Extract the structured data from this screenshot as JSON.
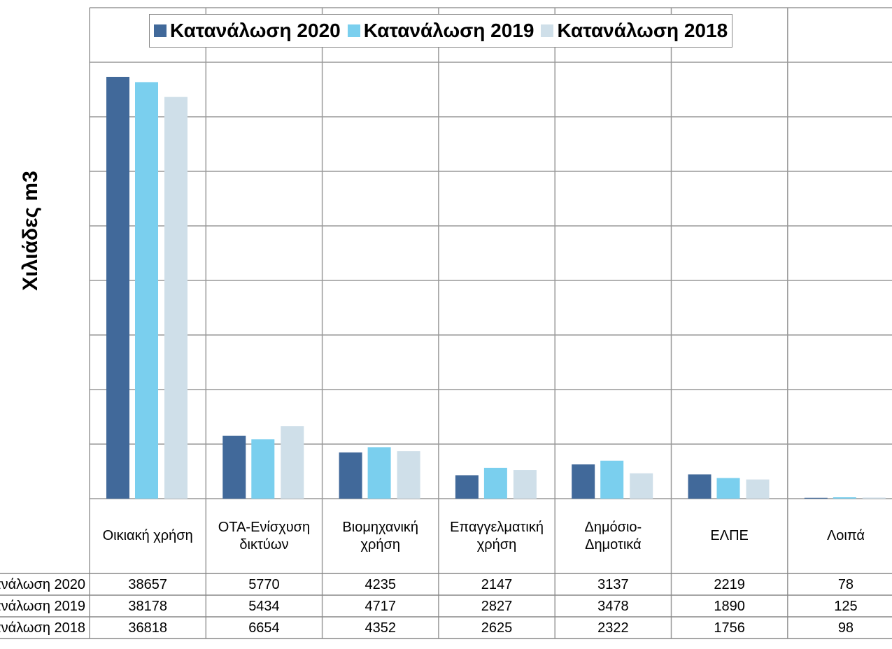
{
  "chart_data": {
    "type": "bar",
    "y_label": "Χιλιάδες m3",
    "categories": [
      "Οικιακή χρήση",
      "ΟΤΑ-Ενίσχυση δικτύων",
      "Βιομηχανική χρήση",
      "Επαγγελματική χρήση",
      "Δημόσιο-Δημοτικά",
      "ΕΛΠΕ",
      "Λοιπά"
    ],
    "series": [
      {
        "name": "Κατανάλωση 2020",
        "color": "#41699a",
        "values": [
          38657,
          5770,
          4235,
          2147,
          3137,
          2219,
          78
        ]
      },
      {
        "name": "Κατανάλωση 2019",
        "color": "#7acfee",
        "values": [
          38178,
          5434,
          4717,
          2827,
          3478,
          1890,
          125
        ]
      },
      {
        "name": "Κατανάλωση 2018",
        "color": "#cfdfe9",
        "values": [
          36818,
          6654,
          4352,
          2625,
          2322,
          1756,
          98
        ]
      }
    ],
    "ylim": [
      0,
      45000
    ],
    "yticks": [
      0,
      5000,
      10000,
      15000,
      20000,
      25000,
      30000,
      35000,
      40000,
      45000
    ],
    "grid": true,
    "legend": "top",
    "data_table": true
  }
}
